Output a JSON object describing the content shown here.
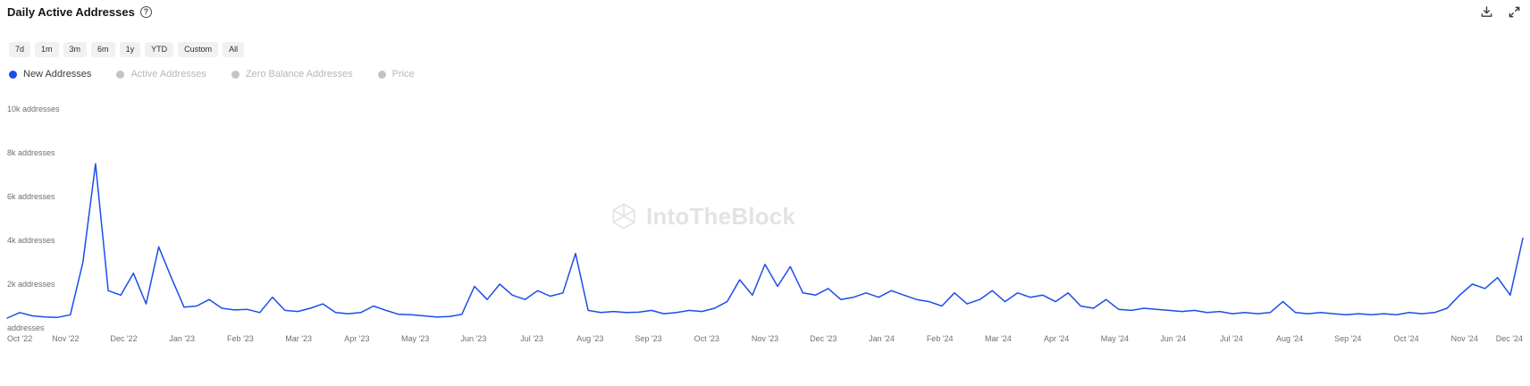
{
  "header": {
    "title": "Daily Active Addresses",
    "help_glyph": "?"
  },
  "toolbar": {
    "ranges": [
      "7d",
      "1m",
      "3m",
      "6m",
      "1y",
      "YTD",
      "Custom",
      "All"
    ]
  },
  "legend": {
    "items": [
      {
        "label": "New Addresses",
        "color": "#1b4deb",
        "active": true
      },
      {
        "label": "Active Addresses",
        "color": "#c3c3c8",
        "active": false
      },
      {
        "label": "Zero Balance Addresses",
        "color": "#c3c3c8",
        "active": false
      },
      {
        "label": "Price",
        "color": "#c3c3c8",
        "active": false
      }
    ]
  },
  "watermark": {
    "text": "IntoTheBlock"
  },
  "icons": {
    "help": "question-circle-icon",
    "download": "download-icon",
    "expand": "expand-icon",
    "watermark": "intotheblock-hexagon-logo"
  },
  "chart_data": {
    "type": "line",
    "title": "Daily Active Addresses",
    "ylabel": "addresses",
    "ylim": [
      0,
      10000
    ],
    "grid": false,
    "legend_position": "top-left",
    "x_tick_labels": [
      "Oct '22",
      "Nov '22",
      "Dec '22",
      "Jan '23",
      "Feb '23",
      "Mar '23",
      "Apr '23",
      "May '23",
      "Jun '23",
      "Jul '23",
      "Aug '23",
      "Sep '23",
      "Oct '23",
      "Nov '23",
      "Dec '23",
      "Jan '24",
      "Feb '24",
      "Mar '24",
      "Apr '24",
      "May '24",
      "Jun '24",
      "Jul '24",
      "Aug '24",
      "Sep '24",
      "Oct '24",
      "Nov '24",
      "Dec '24"
    ],
    "y_ticks": [
      {
        "value": 10000,
        "label": "10k addresses"
      },
      {
        "value": 8000,
        "label": "8k addresses"
      },
      {
        "value": 6000,
        "label": "6k addresses"
      },
      {
        "value": 4000,
        "label": "4k addresses"
      },
      {
        "value": 2000,
        "label": "2k addresses"
      },
      {
        "value": 0,
        "label": "addresses"
      }
    ],
    "series": [
      {
        "name": "New Addresses",
        "color": "#1b4deb",
        "unit": "addresses",
        "sampling": "approx-weekly values estimated from pixels",
        "values": [
          450,
          700,
          550,
          500,
          480,
          600,
          3000,
          7500,
          1700,
          1500,
          2500,
          1100,
          3700,
          2300,
          950,
          1000,
          1300,
          900,
          820,
          850,
          700,
          1400,
          800,
          750,
          900,
          1100,
          700,
          650,
          700,
          1000,
          800,
          620,
          600,
          550,
          500,
          520,
          620,
          1900,
          1300,
          2000,
          1500,
          1300,
          1700,
          1450,
          1600,
          3400,
          800,
          700,
          750,
          700,
          720,
          800,
          650,
          700,
          800,
          750,
          900,
          1200,
          2200,
          1500,
          2900,
          1900,
          2800,
          1600,
          1500,
          1800,
          1300,
          1400,
          1600,
          1400,
          1700,
          1500,
          1300,
          1200,
          1000,
          1600,
          1100,
          1300,
          1700,
          1200,
          1600,
          1400,
          1500,
          1200,
          1600,
          1000,
          900,
          1300,
          850,
          800,
          900,
          850,
          800,
          750,
          800,
          700,
          750,
          650,
          700,
          650,
          700,
          1200,
          700,
          650,
          700,
          650,
          600,
          650,
          600,
          650,
          600,
          700,
          650,
          700,
          900,
          1500,
          2000,
          1800,
          2300,
          1500,
          4100
        ]
      }
    ]
  }
}
